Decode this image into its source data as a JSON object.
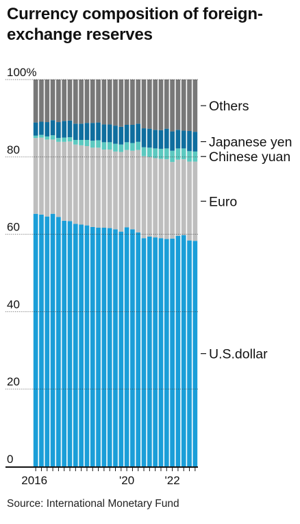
{
  "title": "Currency composition of foreign-exchange reserves",
  "source": "Source: International Monetary Fund",
  "chart_data": {
    "type": "bar",
    "stacked": true,
    "y_unit_label": "%",
    "ylim": [
      0,
      100
    ],
    "yticks": [
      0,
      20,
      40,
      60,
      80,
      100
    ],
    "ytick_labels": [
      "0",
      "20",
      "40",
      "60",
      "80",
      "100%"
    ],
    "grid": true,
    "x_tick_labels": [
      {
        "label": "2016",
        "index": 0
      },
      {
        "label": "'20",
        "index": 16
      },
      {
        "label": "'22",
        "index": 24
      }
    ],
    "categories": [
      "2016Q1",
      "2016Q2",
      "2016Q3",
      "2016Q4",
      "2017Q1",
      "2017Q2",
      "2017Q3",
      "2017Q4",
      "2018Q1",
      "2018Q2",
      "2018Q3",
      "2018Q4",
      "2019Q1",
      "2019Q2",
      "2019Q3",
      "2019Q4",
      "2020Q1",
      "2020Q2",
      "2020Q3",
      "2020Q4",
      "2021Q1",
      "2021Q2",
      "2021Q3",
      "2021Q4",
      "2022Q1",
      "2022Q2",
      "2022Q3",
      "2022Q4",
      "2023Q1"
    ],
    "series": [
      {
        "name": "U.S.dollar",
        "color": "#1a9ed8",
        "values": [
          65.3,
          65.1,
          64.6,
          65.3,
          64.5,
          63.5,
          63.4,
          62.7,
          62.5,
          62.3,
          61.9,
          61.7,
          61.7,
          61.6,
          61.3,
          60.7,
          61.8,
          61.3,
          60.5,
          59.0,
          59.4,
          59.2,
          59.0,
          58.8,
          58.9,
          59.6,
          59.8,
          58.4,
          58.3
        ]
      },
      {
        "name": "Euro",
        "color": "#bebebe",
        "values": [
          19.6,
          19.9,
          19.9,
          19.2,
          19.4,
          20.4,
          20.6,
          20.5,
          20.5,
          20.5,
          20.5,
          20.7,
          20.2,
          20.3,
          20.1,
          20.6,
          20.0,
          20.3,
          21.3,
          21.2,
          20.6,
          20.5,
          20.5,
          20.6,
          19.8,
          19.7,
          19.6,
          20.4,
          20.5
        ]
      },
      {
        "name": "Chinese yuan",
        "color": "#5cc9c0",
        "values": [
          0.6,
          0.7,
          0.8,
          1.1,
          1.0,
          1.1,
          1.1,
          1.2,
          1.4,
          1.6,
          1.8,
          1.9,
          1.9,
          1.9,
          2.0,
          1.9,
          2.0,
          2.0,
          2.1,
          2.3,
          2.4,
          2.5,
          2.6,
          2.8,
          2.9,
          2.9,
          2.8,
          2.7,
          2.6
        ]
      },
      {
        "name": "Japanese yen",
        "color": "#0f6e9e",
        "values": [
          3.4,
          3.4,
          3.7,
          3.9,
          4.1,
          4.3,
          4.3,
          4.2,
          4.2,
          4.4,
          4.6,
          4.6,
          4.6,
          4.6,
          4.7,
          4.6,
          4.5,
          4.7,
          4.7,
          4.9,
          4.9,
          4.8,
          4.8,
          5.1,
          5.0,
          4.8,
          4.6,
          5.2,
          5.1
        ]
      },
      {
        "name": "Others",
        "color": "#787878",
        "values": [
          11.1,
          10.9,
          11.0,
          10.5,
          11.0,
          10.7,
          10.6,
          11.4,
          11.4,
          11.2,
          11.2,
          11.1,
          11.6,
          11.6,
          11.9,
          12.2,
          11.7,
          11.7,
          11.4,
          12.6,
          12.7,
          13.0,
          13.1,
          12.7,
          13.4,
          13.0,
          13.2,
          13.3,
          13.5
        ]
      }
    ]
  }
}
